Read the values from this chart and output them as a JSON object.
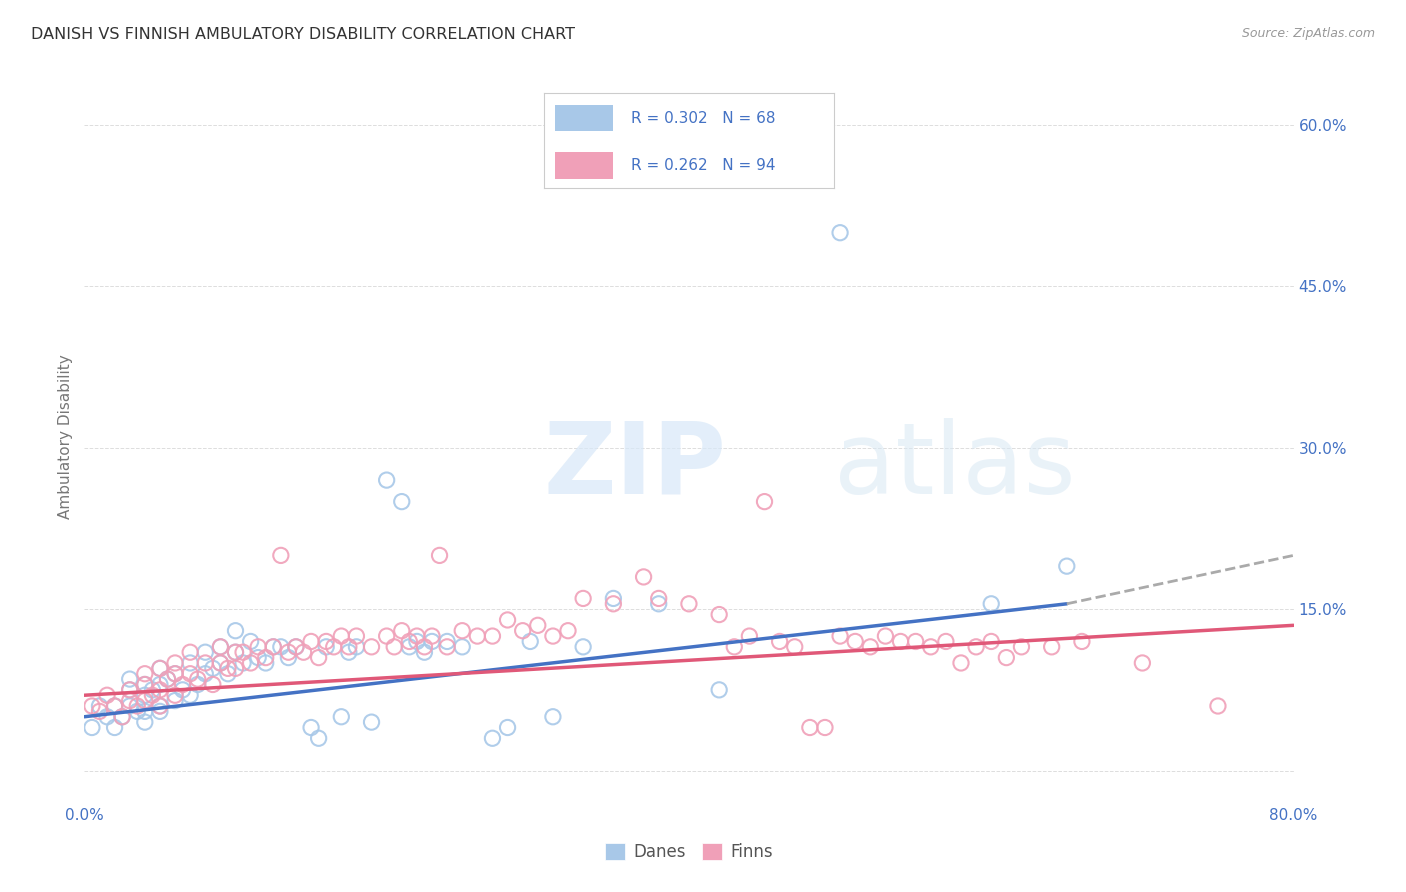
{
  "title": "DANISH VS FINNISH AMBULATORY DISABILITY CORRELATION CHART",
  "source": "Source: ZipAtlas.com",
  "ylabel": "Ambulatory Disability",
  "x_min": 0.0,
  "x_max": 0.8,
  "y_min": -0.03,
  "y_max": 0.65,
  "yticks": [
    0.0,
    0.15,
    0.3,
    0.45,
    0.6
  ],
  "ytick_labels": [
    "",
    "15.0%",
    "30.0%",
    "45.0%",
    "60.0%"
  ],
  "xticks": [
    0.0,
    0.1,
    0.2,
    0.3,
    0.4,
    0.5,
    0.6,
    0.7,
    0.8
  ],
  "xtick_labels": [
    "0.0%",
    "",
    "",
    "",
    "",
    "",
    "",
    "",
    "80.0%"
  ],
  "danes_R": 0.302,
  "danes_N": 68,
  "finns_R": 0.262,
  "finns_N": 94,
  "danes_color": "#a8c8e8",
  "finns_color": "#f0a0b8",
  "danes_line_color": "#4472c4",
  "finns_line_color": "#e05878",
  "dashed_line_color": "#aaaaaa",
  "legend_label_color": "#4472c4",
  "danes_scatter_x": [
    0.005,
    0.01,
    0.015,
    0.02,
    0.02,
    0.025,
    0.03,
    0.03,
    0.03,
    0.035,
    0.04,
    0.04,
    0.04,
    0.04,
    0.045,
    0.05,
    0.05,
    0.05,
    0.05,
    0.055,
    0.06,
    0.06,
    0.065,
    0.07,
    0.07,
    0.075,
    0.08,
    0.08,
    0.085,
    0.09,
    0.09,
    0.095,
    0.1,
    0.1,
    0.105,
    0.11,
    0.115,
    0.12,
    0.125,
    0.13,
    0.135,
    0.14,
    0.15,
    0.155,
    0.16,
    0.17,
    0.175,
    0.18,
    0.19,
    0.2,
    0.21,
    0.215,
    0.22,
    0.225,
    0.23,
    0.24,
    0.25,
    0.27,
    0.28,
    0.295,
    0.31,
    0.33,
    0.35,
    0.38,
    0.42,
    0.5,
    0.6,
    0.65
  ],
  "danes_scatter_y": [
    0.04,
    0.06,
    0.05,
    0.04,
    0.06,
    0.05,
    0.06,
    0.075,
    0.085,
    0.055,
    0.045,
    0.07,
    0.08,
    0.055,
    0.075,
    0.06,
    0.08,
    0.095,
    0.055,
    0.085,
    0.065,
    0.09,
    0.075,
    0.07,
    0.1,
    0.08,
    0.09,
    0.11,
    0.095,
    0.1,
    0.115,
    0.09,
    0.11,
    0.13,
    0.1,
    0.12,
    0.105,
    0.1,
    0.115,
    0.115,
    0.105,
    0.115,
    0.04,
    0.03,
    0.115,
    0.05,
    0.11,
    0.115,
    0.045,
    0.27,
    0.25,
    0.115,
    0.12,
    0.11,
    0.12,
    0.12,
    0.115,
    0.03,
    0.04,
    0.12,
    0.05,
    0.115,
    0.16,
    0.155,
    0.075,
    0.5,
    0.155,
    0.19
  ],
  "finns_scatter_x": [
    0.005,
    0.01,
    0.015,
    0.02,
    0.025,
    0.03,
    0.03,
    0.035,
    0.04,
    0.04,
    0.04,
    0.045,
    0.05,
    0.05,
    0.05,
    0.055,
    0.06,
    0.06,
    0.06,
    0.065,
    0.07,
    0.07,
    0.075,
    0.08,
    0.085,
    0.09,
    0.09,
    0.095,
    0.1,
    0.1,
    0.105,
    0.11,
    0.115,
    0.12,
    0.125,
    0.13,
    0.135,
    0.14,
    0.145,
    0.15,
    0.155,
    0.16,
    0.165,
    0.17,
    0.175,
    0.18,
    0.19,
    0.2,
    0.205,
    0.21,
    0.215,
    0.22,
    0.225,
    0.23,
    0.235,
    0.24,
    0.25,
    0.26,
    0.27,
    0.28,
    0.29,
    0.3,
    0.31,
    0.32,
    0.33,
    0.35,
    0.37,
    0.38,
    0.4,
    0.42,
    0.43,
    0.44,
    0.45,
    0.46,
    0.47,
    0.48,
    0.49,
    0.5,
    0.51,
    0.52,
    0.53,
    0.54,
    0.55,
    0.56,
    0.57,
    0.58,
    0.59,
    0.6,
    0.61,
    0.62,
    0.64,
    0.66,
    0.7,
    0.75
  ],
  "finns_scatter_y": [
    0.06,
    0.055,
    0.07,
    0.06,
    0.05,
    0.065,
    0.075,
    0.06,
    0.08,
    0.065,
    0.09,
    0.07,
    0.075,
    0.095,
    0.06,
    0.085,
    0.07,
    0.09,
    0.1,
    0.08,
    0.09,
    0.11,
    0.085,
    0.1,
    0.08,
    0.1,
    0.115,
    0.095,
    0.11,
    0.095,
    0.11,
    0.1,
    0.115,
    0.105,
    0.115,
    0.2,
    0.11,
    0.115,
    0.11,
    0.12,
    0.105,
    0.12,
    0.115,
    0.125,
    0.115,
    0.125,
    0.115,
    0.125,
    0.115,
    0.13,
    0.12,
    0.125,
    0.115,
    0.125,
    0.2,
    0.115,
    0.13,
    0.125,
    0.125,
    0.14,
    0.13,
    0.135,
    0.125,
    0.13,
    0.16,
    0.155,
    0.18,
    0.16,
    0.155,
    0.145,
    0.115,
    0.125,
    0.25,
    0.12,
    0.115,
    0.04,
    0.04,
    0.125,
    0.12,
    0.115,
    0.125,
    0.12,
    0.12,
    0.115,
    0.12,
    0.1,
    0.115,
    0.12,
    0.105,
    0.115,
    0.115,
    0.12,
    0.1,
    0.06
  ],
  "danes_line_x": [
    0.0,
    0.65
  ],
  "danes_line_y_start": 0.05,
  "danes_line_y_end": 0.155,
  "finns_line_x": [
    0.0,
    0.8
  ],
  "finns_line_y_start": 0.07,
  "finns_line_y_end": 0.135,
  "dashed_line_x": [
    0.65,
    0.8
  ],
  "dashed_line_y_start": 0.155,
  "dashed_line_y_end": 0.2,
  "watermark_zip": "ZIP",
  "watermark_atlas": "atlas",
  "background_color": "#ffffff",
  "tick_color": "#4472c4",
  "grid_color": "#dddddd"
}
